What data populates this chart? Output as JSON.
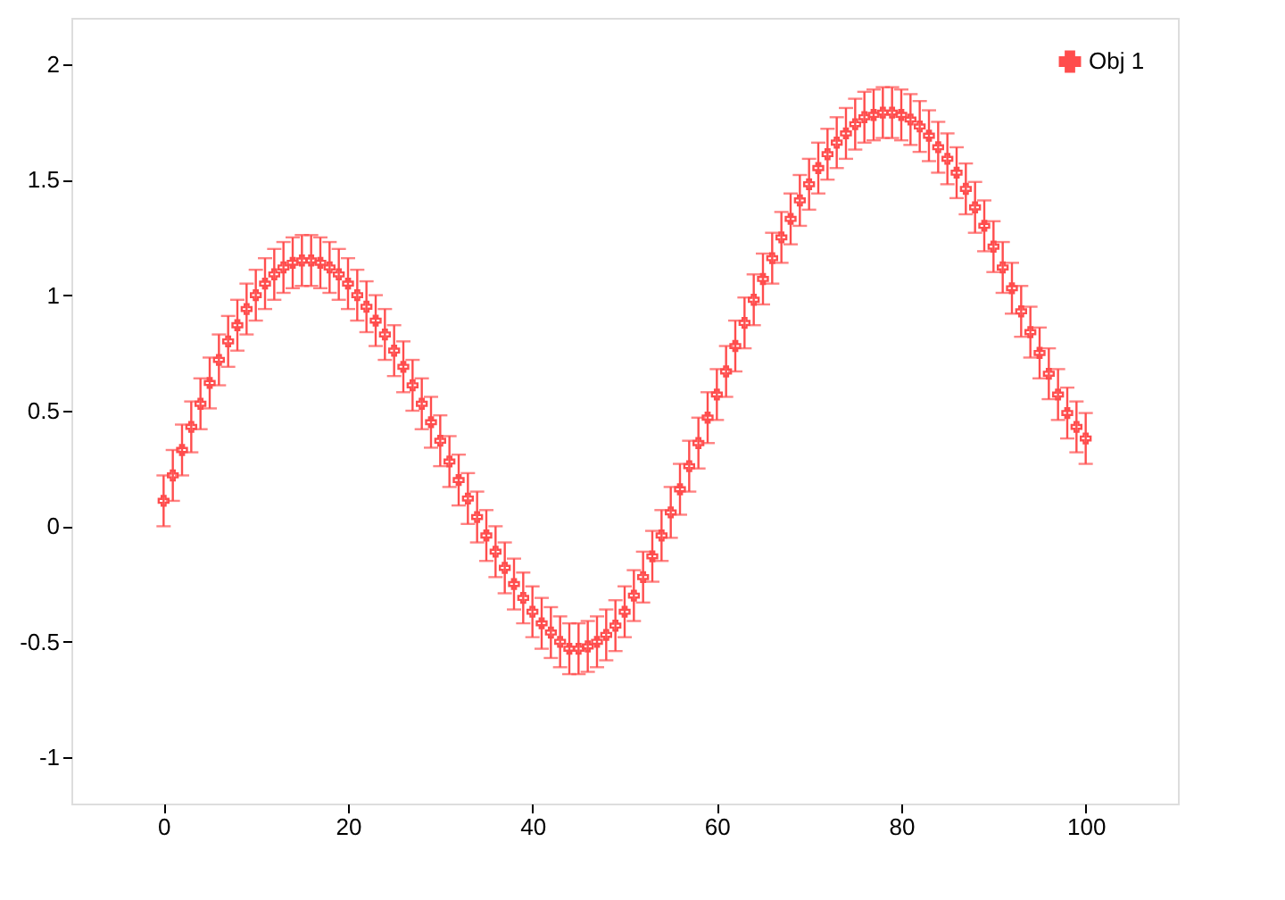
{
  "chart_data": {
    "type": "scatter",
    "x": [
      0,
      1,
      2,
      3,
      4,
      5,
      6,
      7,
      8,
      9,
      10,
      11,
      12,
      13,
      14,
      15,
      16,
      17,
      18,
      19,
      20,
      21,
      22,
      23,
      24,
      25,
      26,
      27,
      28,
      29,
      30,
      31,
      32,
      33,
      34,
      35,
      36,
      37,
      38,
      39,
      40,
      41,
      42,
      43,
      44,
      45,
      46,
      47,
      48,
      49,
      50,
      51,
      52,
      53,
      54,
      55,
      56,
      57,
      58,
      59,
      60,
      61,
      62,
      63,
      64,
      65,
      66,
      67,
      68,
      69,
      70,
      71,
      72,
      73,
      74,
      75,
      76,
      77,
      78,
      79,
      80,
      81,
      82,
      83,
      84,
      85,
      86,
      87,
      88,
      89,
      90,
      91,
      92,
      93,
      94,
      95,
      96,
      97,
      98,
      99,
      100
    ],
    "series": [
      {
        "name": "Obj 1",
        "color": "#ff4d4d",
        "values": [
          0.11,
          0.22,
          0.33,
          0.43,
          0.53,
          0.62,
          0.72,
          0.8,
          0.87,
          0.94,
          1.0,
          1.05,
          1.09,
          1.12,
          1.14,
          1.15,
          1.15,
          1.14,
          1.12,
          1.09,
          1.05,
          1.0,
          0.95,
          0.89,
          0.83,
          0.76,
          0.69,
          0.61,
          0.53,
          0.45,
          0.37,
          0.28,
          0.2,
          0.12,
          0.04,
          -0.04,
          -0.11,
          -0.18,
          -0.25,
          -0.31,
          -0.37,
          -0.42,
          -0.46,
          -0.5,
          -0.53,
          -0.53,
          -0.52,
          -0.5,
          -0.47,
          -0.43,
          -0.37,
          -0.3,
          -0.22,
          -0.13,
          -0.04,
          0.06,
          0.16,
          0.26,
          0.36,
          0.47,
          0.57,
          0.67,
          0.78,
          0.88,
          0.98,
          1.07,
          1.16,
          1.25,
          1.33,
          1.41,
          1.48,
          1.55,
          1.61,
          1.66,
          1.7,
          1.74,
          1.77,
          1.78,
          1.79,
          1.79,
          1.78,
          1.76,
          1.73,
          1.69,
          1.64,
          1.59,
          1.53,
          1.46,
          1.38,
          1.3,
          1.21,
          1.12,
          1.03,
          0.93,
          0.84,
          0.75,
          0.66,
          0.57,
          0.49,
          0.43,
          0.38
        ],
        "errors": [
          0.11,
          0.11,
          0.11,
          0.11,
          0.11,
          0.11,
          0.11,
          0.11,
          0.11,
          0.11,
          0.11,
          0.11,
          0.11,
          0.11,
          0.11,
          0.11,
          0.11,
          0.11,
          0.11,
          0.11,
          0.11,
          0.11,
          0.11,
          0.11,
          0.11,
          0.11,
          0.11,
          0.11,
          0.11,
          0.11,
          0.11,
          0.11,
          0.11,
          0.11,
          0.11,
          0.11,
          0.11,
          0.11,
          0.11,
          0.11,
          0.11,
          0.11,
          0.11,
          0.11,
          0.11,
          0.11,
          0.11,
          0.11,
          0.11,
          0.11,
          0.11,
          0.11,
          0.11,
          0.11,
          0.11,
          0.11,
          0.11,
          0.11,
          0.11,
          0.11,
          0.11,
          0.11,
          0.11,
          0.11,
          0.11,
          0.11,
          0.11,
          0.11,
          0.11,
          0.11,
          0.11,
          0.11,
          0.11,
          0.11,
          0.11,
          0.11,
          0.11,
          0.11,
          0.11,
          0.11,
          0.11,
          0.11,
          0.11,
          0.11,
          0.11,
          0.11,
          0.11,
          0.11,
          0.11,
          0.11,
          0.11,
          0.11,
          0.11,
          0.11,
          0.11,
          0.11,
          0.11,
          0.11,
          0.11,
          0.11,
          0.11
        ]
      }
    ],
    "marker": "cross",
    "xlim": [
      -10,
      110
    ],
    "xticks": [
      0,
      20,
      40,
      60,
      80,
      100
    ],
    "ylim": [
      -1.2,
      2.2
    ],
    "yticks": [
      -1,
      -0.5,
      0,
      0.5,
      1,
      1.5,
      2
    ],
    "grid": false,
    "legend": "top right"
  }
}
